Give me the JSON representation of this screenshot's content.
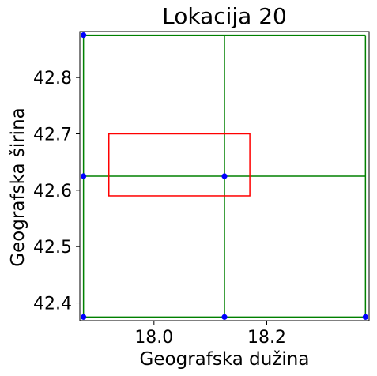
{
  "chart_data": {
    "type": "scatter",
    "title": "Lokacija 20",
    "xlabel": "Geografska dužina",
    "ylabel": "Geografska širina",
    "xlim": [
      17.8685,
      18.3815
    ],
    "ylim": [
      42.3685,
      42.8815
    ],
    "xticks": [
      18.0,
      18.2
    ],
    "xtick_labels": [
      "18.0",
      "18.2"
    ],
    "yticks": [
      42.4,
      42.5,
      42.6,
      42.7,
      42.8
    ],
    "ytick_labels": [
      "42.4",
      "42.5",
      "42.6",
      "42.7",
      "42.8"
    ],
    "grid": false,
    "legend": false,
    "points": {
      "color": "#0000ff",
      "x": [
        17.875,
        17.875,
        17.875,
        18.125,
        18.125,
        18.375
      ],
      "y": [
        42.875,
        42.625,
        42.375,
        42.625,
        42.375,
        42.375
      ]
    },
    "grid_lines": {
      "color": "#008000",
      "vertical_x": [
        17.875,
        18.125,
        18.375
      ],
      "horizontal_y": [
        42.375,
        42.625,
        42.875
      ],
      "x_range": [
        17.875,
        18.375
      ],
      "y_range": [
        42.375,
        42.875
      ]
    },
    "rectangle": {
      "color": "#ff0000",
      "x": [
        17.92,
        18.17
      ],
      "y": [
        42.59,
        42.7
      ]
    }
  }
}
